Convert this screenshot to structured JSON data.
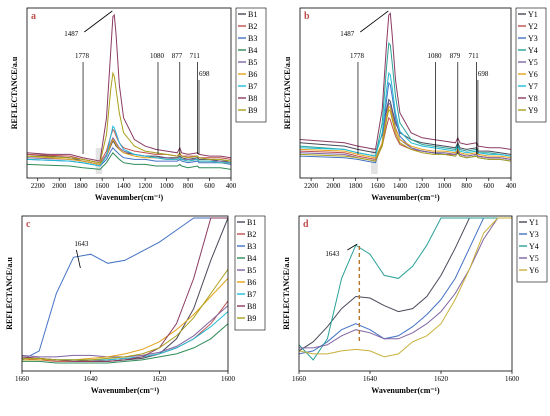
{
  "chart_data": [
    {
      "panel": "a",
      "type": "line",
      "xlabel": "Wavenumber(cm⁻¹)",
      "ylabel": "REFLECTANCE/a.u",
      "xlim": [
        2300,
        400
      ],
      "ylim": [
        0,
        1
      ],
      "xticks": [
        2200,
        2000,
        1800,
        1600,
        1400,
        1200,
        1000,
        800,
        600,
        400
      ],
      "legend_position": "right-outside",
      "annotations": [
        {
          "label": "1487",
          "x": 1487
        },
        {
          "label": "1778",
          "x": 1778
        },
        {
          "label": "1080",
          "x": 1080
        },
        {
          "label": "877",
          "x": 877
        },
        {
          "label": "711",
          "x": 711
        },
        {
          "label": "698",
          "x": 698
        }
      ],
      "x": [
        2300,
        2100,
        1900,
        1780,
        1700,
        1620,
        1560,
        1520,
        1500,
        1487,
        1470,
        1440,
        1400,
        1300,
        1200,
        1100,
        1000,
        900,
        877,
        860,
        800,
        711,
        698,
        600,
        500,
        400
      ],
      "series": [
        {
          "name": "B1",
          "color": "#4a4a5a",
          "values": [
            0.13,
            0.12,
            0.11,
            0.09,
            0.08,
            0.07,
            0.12,
            0.18,
            0.21,
            0.2,
            0.18,
            0.16,
            0.14,
            0.13,
            0.12,
            0.12,
            0.11,
            0.11,
            0.12,
            0.11,
            0.1,
            0.11,
            0.1,
            0.1,
            0.09,
            0.09
          ]
        },
        {
          "name": "B2",
          "color": "#c0504d",
          "values": [
            0.13,
            0.125,
            0.12,
            0.1,
            0.09,
            0.08,
            0.15,
            0.24,
            0.28,
            0.27,
            0.24,
            0.2,
            0.17,
            0.15,
            0.14,
            0.13,
            0.13,
            0.12,
            0.13,
            0.12,
            0.12,
            0.12,
            0.11,
            0.11,
            0.11,
            0.1
          ]
        },
        {
          "name": "B3",
          "color": "#4472c4",
          "values": [
            0.1,
            0.095,
            0.09,
            0.08,
            0.07,
            0.06,
            0.1,
            0.15,
            0.17,
            0.16,
            0.15,
            0.13,
            0.11,
            0.1,
            0.1,
            0.09,
            0.09,
            0.09,
            0.1,
            0.09,
            0.08,
            0.09,
            0.08,
            0.08,
            0.08,
            0.07
          ]
        },
        {
          "name": "B4",
          "color": "#2e8b57",
          "values": [
            0.07,
            0.065,
            0.06,
            0.05,
            0.045,
            0.04,
            0.08,
            0.12,
            0.14,
            0.13,
            0.12,
            0.1,
            0.08,
            0.07,
            0.07,
            0.06,
            0.06,
            0.06,
            0.07,
            0.06,
            0.05,
            0.06,
            0.05,
            0.05,
            0.05,
            0.04
          ]
        },
        {
          "name": "B5",
          "color": "#8064a2",
          "values": [
            0.11,
            0.105,
            0.1,
            0.09,
            0.08,
            0.07,
            0.13,
            0.2,
            0.23,
            0.22,
            0.2,
            0.17,
            0.15,
            0.13,
            0.12,
            0.11,
            0.11,
            0.1,
            0.11,
            0.1,
            0.1,
            0.1,
            0.09,
            0.09,
            0.09,
            0.08
          ]
        },
        {
          "name": "B6",
          "color": "#e3a21a",
          "values": [
            0.12,
            0.11,
            0.1,
            0.09,
            0.08,
            0.07,
            0.12,
            0.19,
            0.22,
            0.21,
            0.19,
            0.16,
            0.14,
            0.12,
            0.11,
            0.11,
            0.1,
            0.1,
            0.11,
            0.1,
            0.09,
            0.1,
            0.09,
            0.09,
            0.08,
            0.08
          ]
        },
        {
          "name": "B7",
          "color": "#22bcd6",
          "values": [
            0.1,
            0.095,
            0.09,
            0.08,
            0.07,
            0.06,
            0.12,
            0.24,
            0.3,
            0.29,
            0.26,
            0.2,
            0.16,
            0.13,
            0.12,
            0.11,
            0.1,
            0.1,
            0.11,
            0.1,
            0.09,
            0.1,
            0.09,
            0.09,
            0.08,
            0.08
          ]
        },
        {
          "name": "B8",
          "color": "#8b3a62",
          "values": [
            0.14,
            0.13,
            0.13,
            0.11,
            0.1,
            0.09,
            0.35,
            0.75,
            0.96,
            0.97,
            0.85,
            0.55,
            0.35,
            0.22,
            0.18,
            0.16,
            0.15,
            0.14,
            0.17,
            0.14,
            0.13,
            0.14,
            0.13,
            0.12,
            0.12,
            0.11
          ]
        },
        {
          "name": "B9",
          "color": "#a8a01a",
          "values": [
            0.12,
            0.115,
            0.11,
            0.1,
            0.09,
            0.08,
            0.25,
            0.52,
            0.62,
            0.6,
            0.52,
            0.38,
            0.26,
            0.18,
            0.15,
            0.14,
            0.13,
            0.12,
            0.14,
            0.12,
            0.11,
            0.12,
            0.11,
            0.1,
            0.1,
            0.09
          ]
        }
      ]
    },
    {
      "panel": "b",
      "type": "line",
      "xlabel": "Wavenumber(cm⁻¹)",
      "ylabel": "REFLECTANCE/a.u",
      "xlim": [
        2300,
        400
      ],
      "ylim": [
        0,
        1
      ],
      "xticks": [
        2200,
        2000,
        1800,
        1600,
        1400,
        1200,
        1000,
        800,
        600,
        400
      ],
      "legend_position": "right-outside",
      "annotations": [
        {
          "label": "1487",
          "x": 1487
        },
        {
          "label": "1778",
          "x": 1778
        },
        {
          "label": "1080",
          "x": 1080
        },
        {
          "label": "879",
          "x": 879
        },
        {
          "label": "711",
          "x": 711
        },
        {
          "label": "698",
          "x": 698
        }
      ],
      "x": [
        2300,
        2100,
        1900,
        1780,
        1700,
        1620,
        1560,
        1520,
        1500,
        1487,
        1470,
        1440,
        1400,
        1300,
        1200,
        1100,
        1000,
        900,
        879,
        860,
        800,
        711,
        698,
        600,
        500,
        400
      ],
      "series": [
        {
          "name": "Y1",
          "color": "#4a4a5a",
          "values": [
            0.2,
            0.19,
            0.18,
            0.16,
            0.15,
            0.14,
            0.25,
            0.4,
            0.46,
            0.45,
            0.4,
            0.32,
            0.26,
            0.22,
            0.2,
            0.19,
            0.18,
            0.17,
            0.2,
            0.17,
            0.16,
            0.17,
            0.15,
            0.15,
            0.14,
            0.13
          ]
        },
        {
          "name": "Y2",
          "color": "#c0504d",
          "values": [
            0.15,
            0.145,
            0.14,
            0.12,
            0.11,
            0.1,
            0.18,
            0.3,
            0.35,
            0.34,
            0.3,
            0.24,
            0.19,
            0.16,
            0.15,
            0.14,
            0.13,
            0.13,
            0.15,
            0.13,
            0.12,
            0.13,
            0.12,
            0.11,
            0.11,
            0.1
          ]
        },
        {
          "name": "Y3",
          "color": "#4472c4",
          "values": [
            0.12,
            0.115,
            0.11,
            0.1,
            0.09,
            0.08,
            0.2,
            0.46,
            0.56,
            0.55,
            0.48,
            0.35,
            0.24,
            0.17,
            0.15,
            0.14,
            0.13,
            0.12,
            0.14,
            0.12,
            0.11,
            0.12,
            0.11,
            0.1,
            0.1,
            0.09
          ]
        },
        {
          "name": "Y4",
          "color": "#2aa198",
          "values": [
            0.18,
            0.17,
            0.16,
            0.14,
            0.13,
            0.12,
            0.32,
            0.66,
            0.8,
            0.79,
            0.68,
            0.48,
            0.32,
            0.22,
            0.19,
            0.18,
            0.17,
            0.16,
            0.19,
            0.16,
            0.15,
            0.16,
            0.14,
            0.14,
            0.13,
            0.12
          ]
        },
        {
          "name": "Y5",
          "color": "#8064a2",
          "values": [
            0.14,
            0.135,
            0.13,
            0.11,
            0.1,
            0.09,
            0.2,
            0.38,
            0.44,
            0.43,
            0.38,
            0.29,
            0.22,
            0.17,
            0.15,
            0.14,
            0.14,
            0.13,
            0.15,
            0.13,
            0.12,
            0.13,
            0.12,
            0.11,
            0.11,
            0.1
          ]
        },
        {
          "name": "Y6",
          "color": "#e3a21a",
          "values": [
            0.16,
            0.155,
            0.15,
            0.13,
            0.12,
            0.11,
            0.2,
            0.36,
            0.42,
            0.41,
            0.36,
            0.28,
            0.22,
            0.18,
            0.16,
            0.15,
            0.15,
            0.14,
            0.16,
            0.14,
            0.13,
            0.14,
            0.13,
            0.12,
            0.12,
            0.11
          ]
        },
        {
          "name": "Y7",
          "color": "#22bcd6",
          "values": [
            0.17,
            0.165,
            0.16,
            0.14,
            0.13,
            0.12,
            0.26,
            0.52,
            0.62,
            0.61,
            0.53,
            0.38,
            0.27,
            0.2,
            0.18,
            0.17,
            0.16,
            0.15,
            0.18,
            0.15,
            0.14,
            0.15,
            0.14,
            0.13,
            0.13,
            0.12
          ]
        },
        {
          "name": "Y8",
          "color": "#8b3a62",
          "values": [
            0.22,
            0.21,
            0.2,
            0.18,
            0.17,
            0.16,
            0.4,
            0.8,
            0.97,
            0.98,
            0.85,
            0.58,
            0.38,
            0.26,
            0.23,
            0.22,
            0.21,
            0.2,
            0.23,
            0.2,
            0.19,
            0.2,
            0.18,
            0.17,
            0.17,
            0.16
          ]
        },
        {
          "name": "Y9",
          "color": "#a8a01a",
          "values": [
            0.13,
            0.125,
            0.12,
            0.11,
            0.1,
            0.09,
            0.18,
            0.34,
            0.4,
            0.39,
            0.34,
            0.26,
            0.2,
            0.16,
            0.14,
            0.13,
            0.13,
            0.12,
            0.14,
            0.12,
            0.11,
            0.12,
            0.11,
            0.1,
            0.1,
            0.09
          ]
        }
      ]
    },
    {
      "panel": "c",
      "type": "line",
      "xlabel": "Wavenumber(cm⁻¹)",
      "ylabel": "REFLECTANCE/a.u",
      "xlim": [
        1660,
        1600
      ],
      "ylim": [
        0,
        1
      ],
      "xticks": [
        1660,
        1640,
        1620,
        1600
      ],
      "legend_position": "right-outside",
      "annotations": [
        {
          "label": "1643",
          "x": 1643
        }
      ],
      "x": [
        1660,
        1655,
        1650,
        1645,
        1640,
        1635,
        1630,
        1625,
        1620,
        1615,
        1610,
        1605,
        1600
      ],
      "series": [
        {
          "name": "B1",
          "color": "#4a4a5a",
          "values": [
            0.08,
            0.07,
            0.06,
            0.06,
            0.05,
            0.05,
            0.06,
            0.07,
            0.1,
            0.2,
            0.4,
            0.72,
            1.0
          ]
        },
        {
          "name": "B2",
          "color": "#c0504d",
          "values": [
            0.07,
            0.06,
            0.05,
            0.05,
            0.05,
            0.06,
            0.07,
            0.08,
            0.1,
            0.14,
            0.2,
            0.3,
            0.45
          ]
        },
        {
          "name": "B3",
          "color": "#4472c4",
          "values": [
            0.06,
            0.12,
            0.5,
            0.74,
            0.76,
            0.7,
            0.72,
            0.78,
            0.84,
            0.92,
            1.0,
            1.0,
            1.0
          ]
        },
        {
          "name": "B4",
          "color": "#2e8b57",
          "values": [
            0.05,
            0.05,
            0.04,
            0.04,
            0.04,
            0.04,
            0.05,
            0.06,
            0.08,
            0.1,
            0.14,
            0.2,
            0.3
          ]
        },
        {
          "name": "B5",
          "color": "#8064a2",
          "values": [
            0.09,
            0.08,
            0.08,
            0.09,
            0.09,
            0.08,
            0.08,
            0.09,
            0.11,
            0.15,
            0.22,
            0.32,
            0.42
          ]
        },
        {
          "name": "B6",
          "color": "#e3a21a",
          "values": [
            0.06,
            0.06,
            0.06,
            0.06,
            0.07,
            0.08,
            0.1,
            0.13,
            0.18,
            0.26,
            0.36,
            0.48,
            0.6
          ]
        },
        {
          "name": "B7",
          "color": "#22bcd6",
          "values": [
            0.07,
            0.07,
            0.06,
            0.06,
            0.06,
            0.06,
            0.07,
            0.08,
            0.1,
            0.14,
            0.2,
            0.28,
            0.38
          ]
        },
        {
          "name": "B8",
          "color": "#8b3a62",
          "values": [
            0.08,
            0.07,
            0.06,
            0.05,
            0.05,
            0.05,
            0.06,
            0.08,
            0.14,
            0.3,
            0.6,
            1.0,
            1.0
          ]
        },
        {
          "name": "B9",
          "color": "#a8a01a",
          "values": [
            0.07,
            0.07,
            0.06,
            0.06,
            0.06,
            0.07,
            0.08,
            0.1,
            0.14,
            0.22,
            0.34,
            0.5,
            0.66
          ]
        }
      ]
    },
    {
      "panel": "d",
      "type": "line",
      "xlabel": "Wavenumber(cm⁻¹)",
      "ylabel": "REFLECTANCE/a.u",
      "xlim": [
        1660,
        1600
      ],
      "ylim": [
        0,
        1
      ],
      "xticks": [
        1660,
        1640,
        1620,
        1600
      ],
      "legend_position": "right-outside",
      "annotations": [
        {
          "label": "1643",
          "x": 1643
        }
      ],
      "x": [
        1660,
        1656,
        1652,
        1648,
        1644,
        1640,
        1636,
        1632,
        1628,
        1624,
        1620,
        1616,
        1612,
        1608,
        1604,
        1600
      ],
      "series": [
        {
          "name": "Y1",
          "color": "#4a4a5a",
          "values": [
            0.12,
            0.18,
            0.28,
            0.4,
            0.48,
            0.47,
            0.42,
            0.38,
            0.4,
            0.48,
            0.62,
            0.8,
            1.0,
            1.0,
            1.0,
            1.0
          ]
        },
        {
          "name": "Y3",
          "color": "#4472c4",
          "values": [
            0.1,
            0.12,
            0.18,
            0.26,
            0.3,
            0.26,
            0.2,
            0.22,
            0.28,
            0.36,
            0.46,
            0.6,
            0.8,
            1.0,
            1.0,
            1.0
          ]
        },
        {
          "name": "Y4",
          "color": "#2aa198",
          "values": [
            0.16,
            0.06,
            0.2,
            0.6,
            0.82,
            0.76,
            0.62,
            0.6,
            0.68,
            0.82,
            1.0,
            1.0,
            1.0,
            1.0,
            1.0,
            1.0
          ]
        },
        {
          "name": "Y5",
          "color": "#8064a2",
          "values": [
            0.14,
            0.14,
            0.16,
            0.22,
            0.26,
            0.24,
            0.2,
            0.2,
            0.24,
            0.3,
            0.38,
            0.5,
            0.66,
            0.86,
            1.0,
            1.0
          ]
        },
        {
          "name": "Y6",
          "color": "#c9b03a",
          "values": [
            0.12,
            0.1,
            0.1,
            0.12,
            0.13,
            0.12,
            0.08,
            0.1,
            0.18,
            0.22,
            0.3,
            0.46,
            0.66,
            0.9,
            1.0,
            1.0
          ]
        }
      ]
    }
  ]
}
